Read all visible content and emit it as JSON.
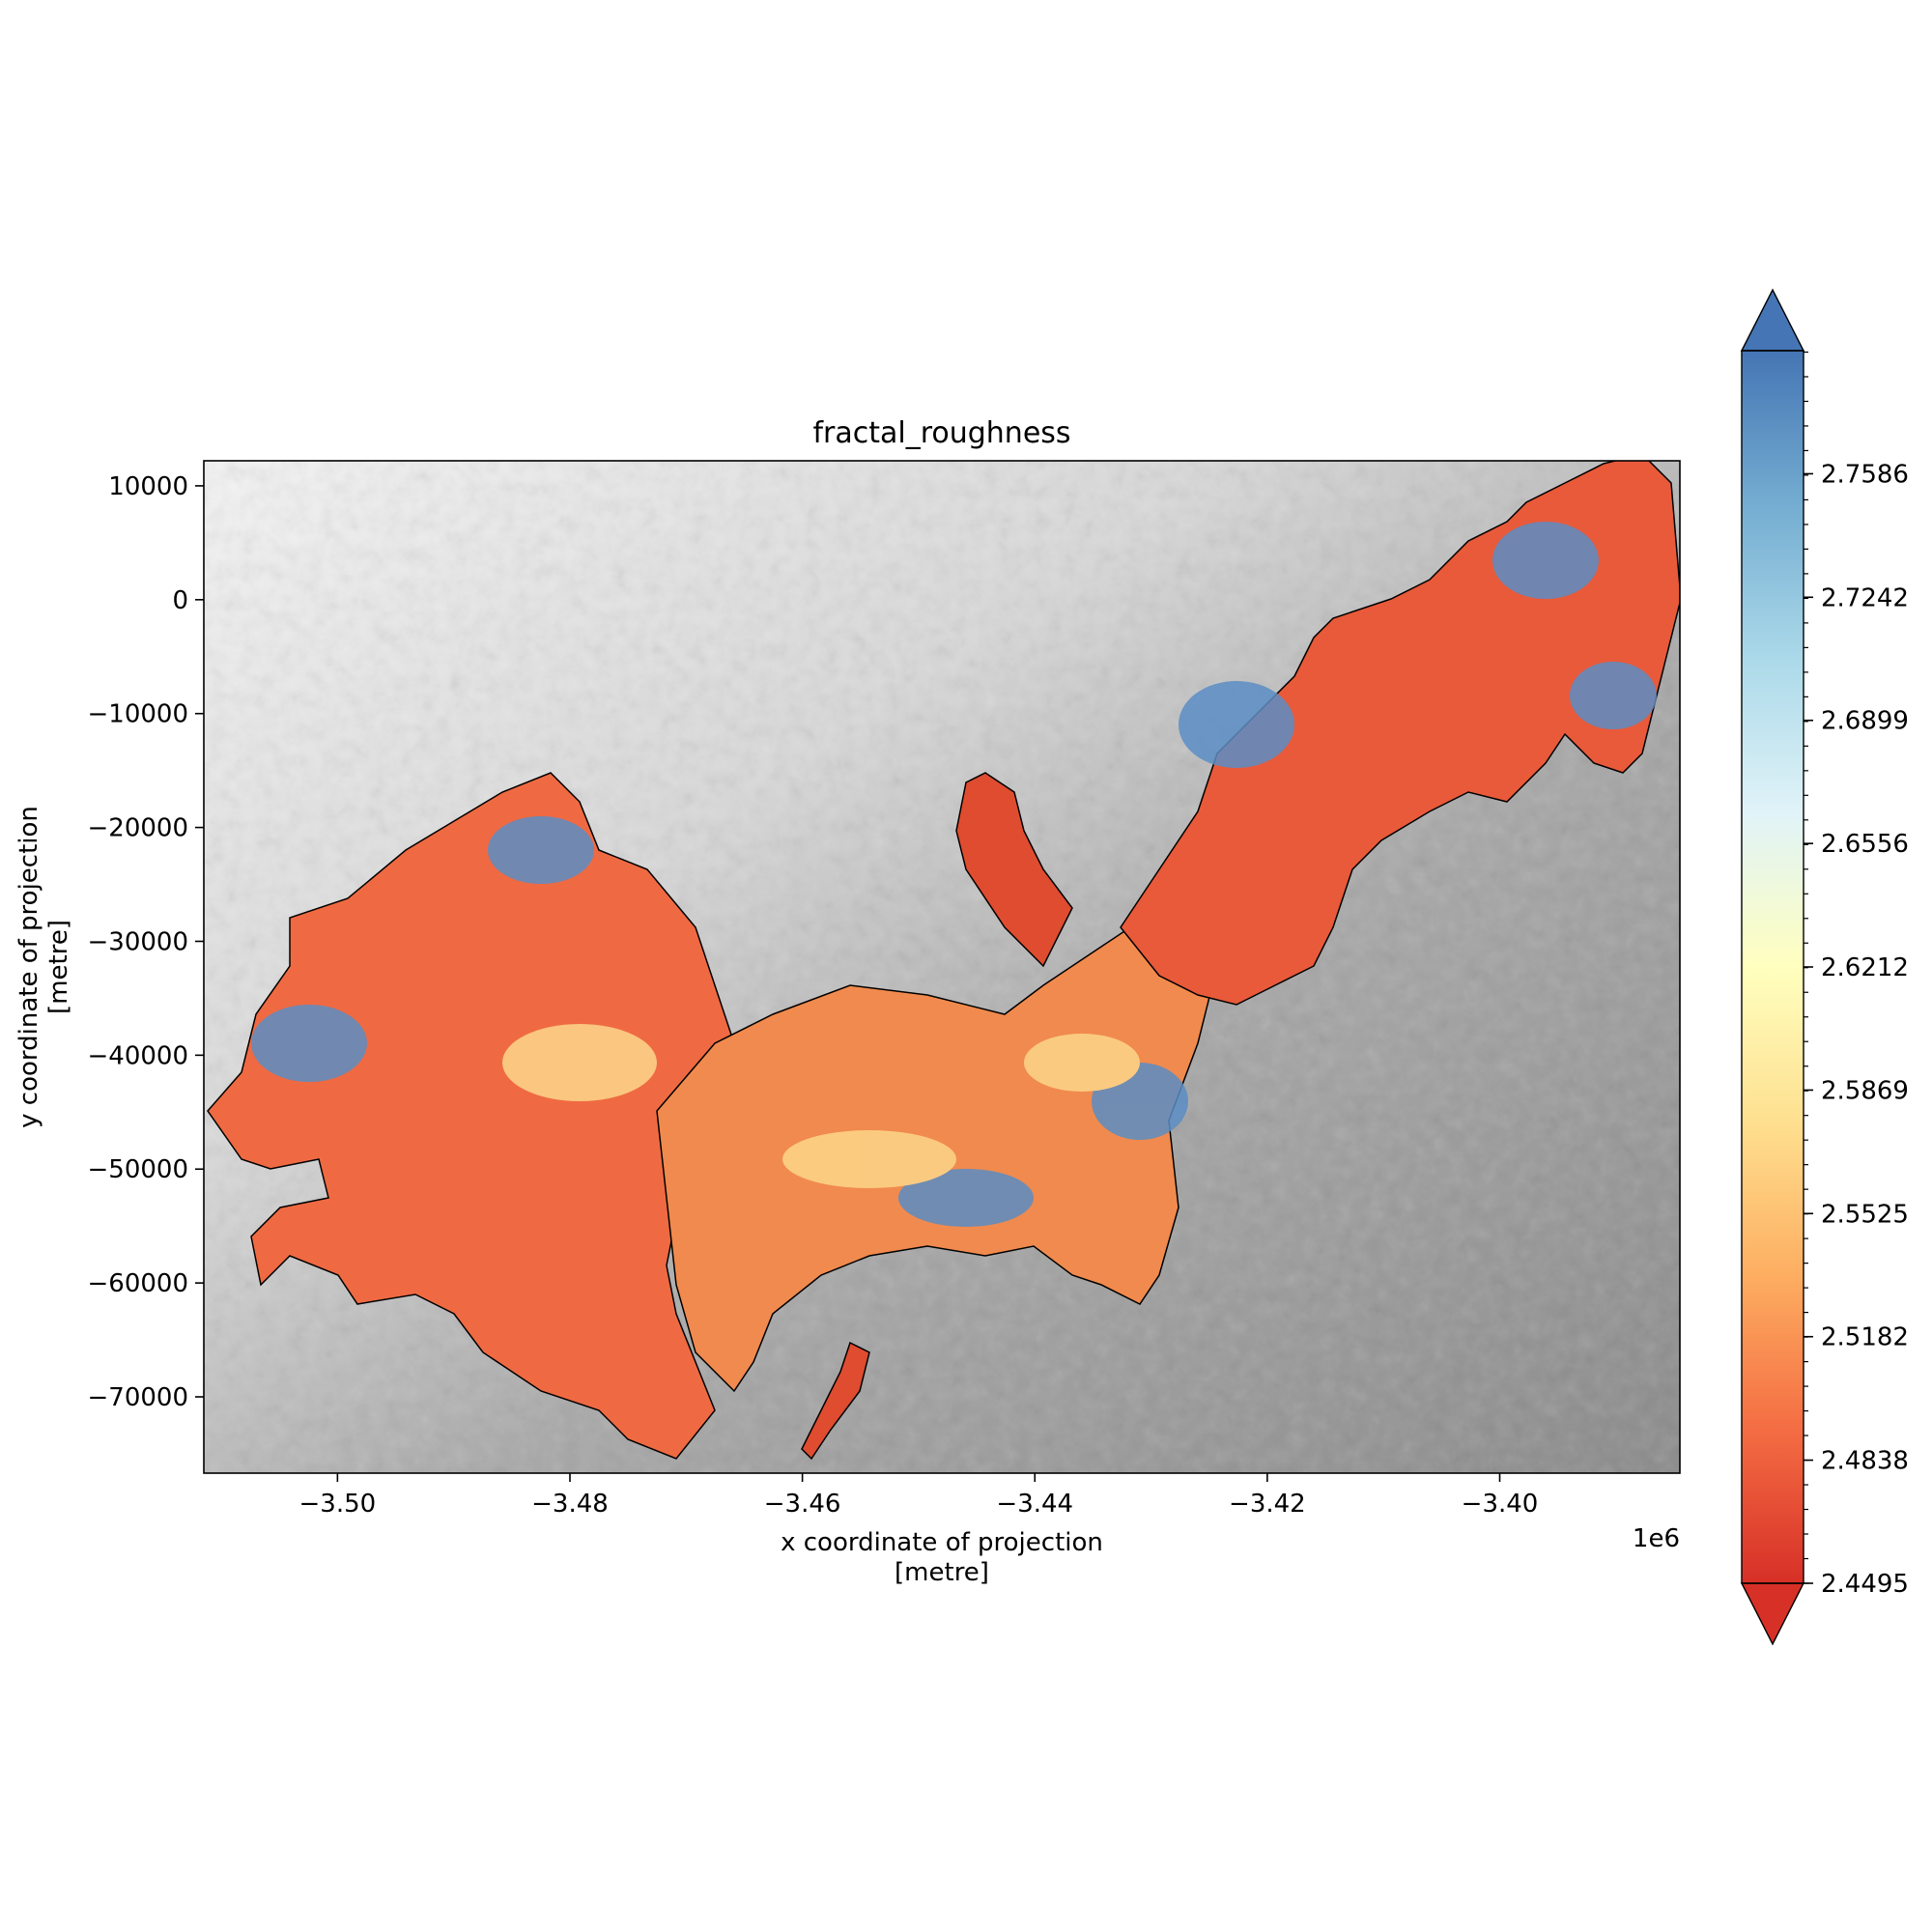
{
  "chart_data": {
    "type": "heatmap",
    "title": "fractal_roughness",
    "xlabel": "x coordinate of projection\n[metre]",
    "ylabel": "y coordinate of projection\n[metre]",
    "x_offset_label": "1e6",
    "xlim": [
      -3.5115,
      -3.3845
    ],
    "ylim": [
      -76700,
      12200
    ],
    "x_ticks": [
      {
        "value": -3.5,
        "label": "−3.50"
      },
      {
        "value": -3.48,
        "label": "−3.48"
      },
      {
        "value": -3.46,
        "label": "−3.46"
      },
      {
        "value": -3.44,
        "label": "−3.44"
      },
      {
        "value": -3.42,
        "label": "−3.42"
      },
      {
        "value": -3.4,
        "label": "−3.40"
      }
    ],
    "y_ticks": [
      {
        "value": 10000,
        "label": "10000"
      },
      {
        "value": 0,
        "label": "0"
      },
      {
        "value": -10000,
        "label": "−10000"
      },
      {
        "value": -20000,
        "label": "−20000"
      },
      {
        "value": -30000,
        "label": "−30000"
      },
      {
        "value": -40000,
        "label": "−40000"
      },
      {
        "value": -50000,
        "label": "−50000"
      },
      {
        "value": -60000,
        "label": "−60000"
      },
      {
        "value": -70000,
        "label": "−70000"
      }
    ],
    "colorbar": {
      "colormap": "RdYlBu",
      "extend": "both",
      "vmin": 2.4495,
      "vmax": 2.7929,
      "ticks": [
        {
          "value": 2.4495,
          "label": "2.4495"
        },
        {
          "value": 2.4838,
          "label": "2.4838"
        },
        {
          "value": 2.5182,
          "label": "2.5182"
        },
        {
          "value": 2.5525,
          "label": "2.5525"
        },
        {
          "value": 2.5869,
          "label": "2.5869"
        },
        {
          "value": 2.6212,
          "label": "2.6212"
        },
        {
          "value": 2.6556,
          "label": "2.6556"
        },
        {
          "value": 2.6899,
          "label": "2.6899"
        },
        {
          "value": 2.7242,
          "label": "2.7242"
        },
        {
          "value": 2.7586,
          "label": "2.7586"
        }
      ],
      "stops": [
        "#d73027",
        "#f46d43",
        "#fdae61",
        "#fee090",
        "#ffffbf",
        "#e0f3f8",
        "#abd9e9",
        "#74add1",
        "#4575b4"
      ]
    },
    "background": "grayscale hillshade / elevation",
    "outline_color": "#000000"
  }
}
